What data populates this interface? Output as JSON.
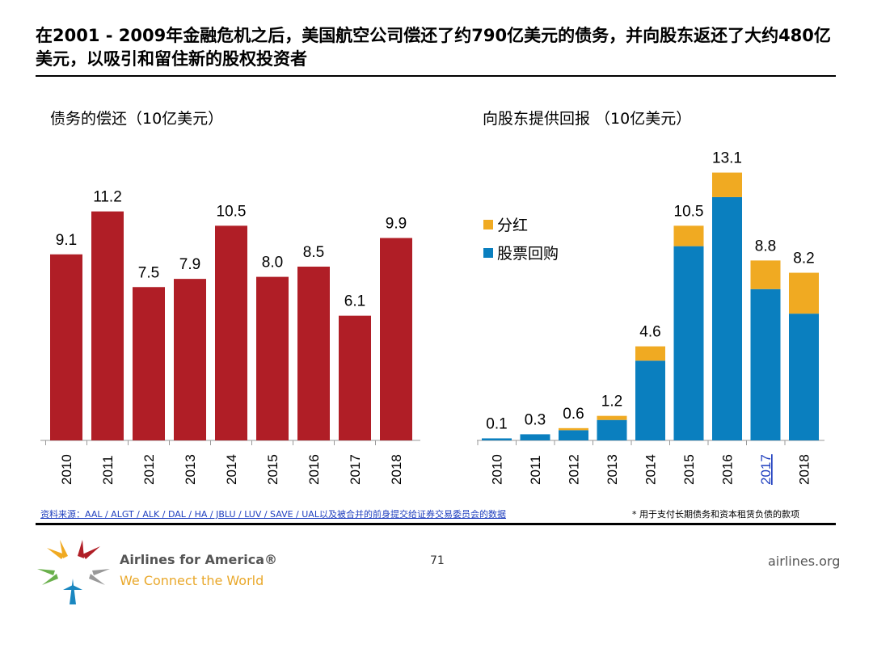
{
  "title": "在2001 - 2009年金融危机之后，美国航空公司偿还了约790亿美元的债务，并向股东返还了大约480亿美元，以吸引和留住新的股权投资者",
  "chart_data": [
    {
      "type": "bar",
      "title": "债务的偿还（10亿美元）",
      "categories": [
        "2010",
        "2011",
        "2012",
        "2013",
        "2014",
        "2015",
        "2016",
        "2017",
        "2018"
      ],
      "values": [
        9.1,
        11.2,
        7.5,
        7.9,
        10.5,
        8.0,
        8.5,
        6.1,
        9.9
      ],
      "data_labels": [
        "9.1",
        "11.2",
        "7.5",
        "7.9",
        "10.5",
        "8.0",
        "8.5",
        "6.1",
        "9.9"
      ],
      "ylim": [
        0,
        12.5
      ],
      "grid": false,
      "color": "#b01e26"
    },
    {
      "type": "bar",
      "stacked": true,
      "title": "向股东提供回报 （10亿美元）",
      "categories": [
        "2010",
        "2011",
        "2012",
        "2013",
        "2014",
        "2015",
        "2016",
        "2017",
        "2018"
      ],
      "series": [
        {
          "name": "股票回购",
          "color": "#0a7fbf",
          "values": [
            0.1,
            0.3,
            0.5,
            1.0,
            3.9,
            9.5,
            11.9,
            7.4,
            6.2
          ]
        },
        {
          "name": "分红",
          "color": "#f0aa22",
          "values": [
            0,
            0,
            0.1,
            0.2,
            0.7,
            1.0,
            1.2,
            1.4,
            2.0
          ]
        }
      ],
      "totals": [
        "0.1",
        "0.3",
        "0.6",
        "1.2",
        "4.6",
        "10.5",
        "13.1",
        "8.8",
        "8.2"
      ],
      "linked_category": "2017",
      "ylim": [
        0,
        14
      ],
      "legend_position": "left",
      "grid": false
    }
  ],
  "footer": {
    "source": "资料来源：AAL / ALGT / ALK / DAL / HA / JBLU / LUV / SAVE / UAL以及被合并的前身提交给证券交易委员会的数据",
    "note": "* 用于支付长期债务和资本租赁负债的款项",
    "brand": "Airlines for America®",
    "tagline": "We Connect the World",
    "page": "71",
    "site": "airlines.org"
  }
}
